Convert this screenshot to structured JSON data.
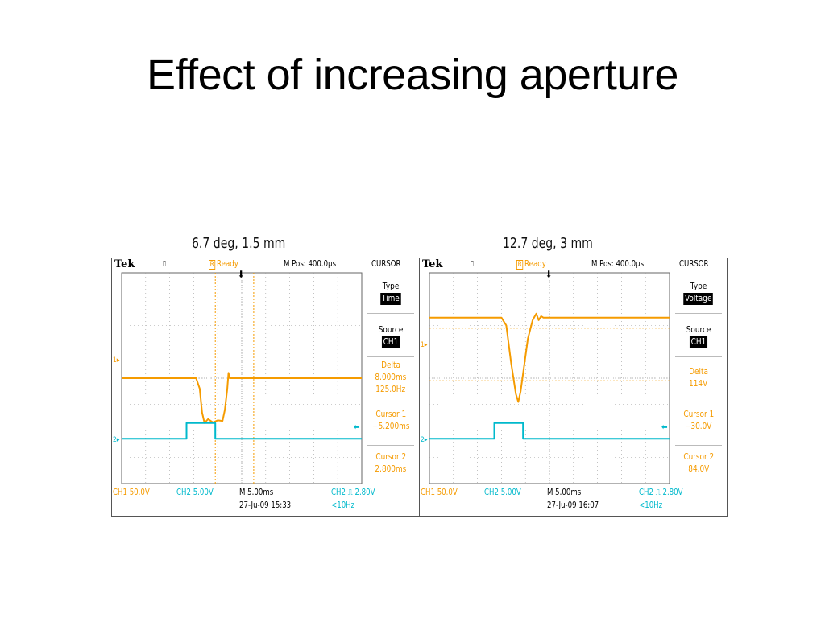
{
  "title": "Effect of increasing aperture",
  "panels": [
    {
      "caption": "6.7 deg, 1.5 mm",
      "brand": "Tek",
      "status": "Ready",
      "trigger_glyph": "⎍",
      "mpos": "M Pos: 400.0µs",
      "menu_title": "CURSOR",
      "type_label": "Type",
      "type_value": "Time",
      "source_label": "Source",
      "source_value": "CH1",
      "delta_label": "Delta",
      "delta_value_1": "8.000ms",
      "delta_value_2": "125.0Hz",
      "cursor1_label": "Cursor 1",
      "cursor1_value": "−5.200ms",
      "cursor2_label": "Cursor 2",
      "cursor2_value": "2.800ms",
      "ch1_scale": "CH1  50.0V",
      "ch2_scale": "CH2  5.00V",
      "timebase": "M 5.00ms",
      "trigger_info": "CH2 ⎍ 2.80V",
      "date": "27-Ju-09 15:33",
      "freq": "<10Hz",
      "ch1_marker": "1▸",
      "ch2_marker": "2▸",
      "cursor_type": "time"
    },
    {
      "caption": "12.7 deg, 3 mm",
      "brand": "Tek",
      "status": "Ready",
      "trigger_glyph": "⎍",
      "mpos": "M Pos: 400.0µs",
      "menu_title": "CURSOR",
      "type_label": "Type",
      "type_value": "Voltage",
      "source_label": "Source",
      "source_value": "CH1",
      "delta_label": "Delta",
      "delta_value_1": "114V",
      "delta_value_2": "",
      "cursor1_label": "Cursor 1",
      "cursor1_value": "−30.0V",
      "cursor2_label": "Cursor 2",
      "cursor2_value": "84.0V",
      "ch1_scale": "CH1  50.0V",
      "ch2_scale": "CH2  5.00V",
      "timebase": "M 5.00ms",
      "trigger_info": "CH2 ⎍ 2.80V",
      "date": "27-Ju-09 16:07",
      "freq": "<10Hz",
      "ch1_marker": "1▸",
      "ch2_marker": "2▸",
      "cursor_type": "voltage"
    }
  ],
  "colors": {
    "ch1": "#f59b00",
    "ch2": "#00b9cc",
    "grid": "#9a9a9a"
  },
  "chart_data": [
    {
      "type": "line",
      "title": "6.7 deg, 1.5 mm",
      "xlabel": "",
      "ylabel": "",
      "x_units": "divisions",
      "y_units": "divisions",
      "xlim": [
        0,
        10
      ],
      "ylim": [
        -4,
        4
      ],
      "grid": true,
      "series": [
        {
          "channel": "CH1",
          "x": [
            0,
            3.1,
            3.25,
            3.35,
            3.45,
            3.6,
            3.8,
            4.0,
            4.2,
            4.3,
            4.4,
            4.45,
            4.5,
            10
          ],
          "y": [
            0,
            0,
            -0.4,
            -1.3,
            -1.7,
            -1.55,
            -1.68,
            -1.6,
            -1.62,
            -1.2,
            -0.4,
            0.2,
            0,
            0
          ]
        },
        {
          "channel": "CH2",
          "x": [
            0,
            2.7,
            2.7,
            3.9,
            3.9,
            10
          ],
          "y": [
            -2.3,
            -2.3,
            -1.7,
            -1.7,
            -2.3,
            -2.3
          ]
        }
      ],
      "cursors": {
        "type": "time",
        "cursor1": "-5.200ms",
        "cursor2": "2.800ms",
        "delta": "8.000ms"
      }
    },
    {
      "type": "line",
      "title": "12.7 deg, 3 mm",
      "xlabel": "",
      "ylabel": "",
      "x_units": "divisions",
      "y_units": "divisions",
      "xlim": [
        0,
        10
      ],
      "ylim": [
        -4,
        4
      ],
      "grid": true,
      "series": [
        {
          "channel": "CH1",
          "x": [
            0,
            3.0,
            3.2,
            3.4,
            3.6,
            3.7,
            3.8,
            3.95,
            4.1,
            4.3,
            4.45,
            4.55,
            4.65,
            4.75,
            10
          ],
          "y": [
            2.3,
            2.3,
            2.0,
            0.6,
            -0.6,
            -0.9,
            -0.5,
            0.5,
            1.5,
            2.2,
            2.45,
            2.2,
            2.35,
            2.3,
            2.3
          ]
        },
        {
          "channel": "CH2",
          "x": [
            0,
            2.7,
            2.7,
            3.9,
            3.9,
            10
          ],
          "y": [
            -2.3,
            -2.3,
            -1.7,
            -1.7,
            -2.3,
            -2.3
          ]
        }
      ],
      "cursors": {
        "type": "voltage",
        "cursor1": "-30.0V",
        "cursor2": "84.0V",
        "delta": "114V"
      }
    }
  ]
}
